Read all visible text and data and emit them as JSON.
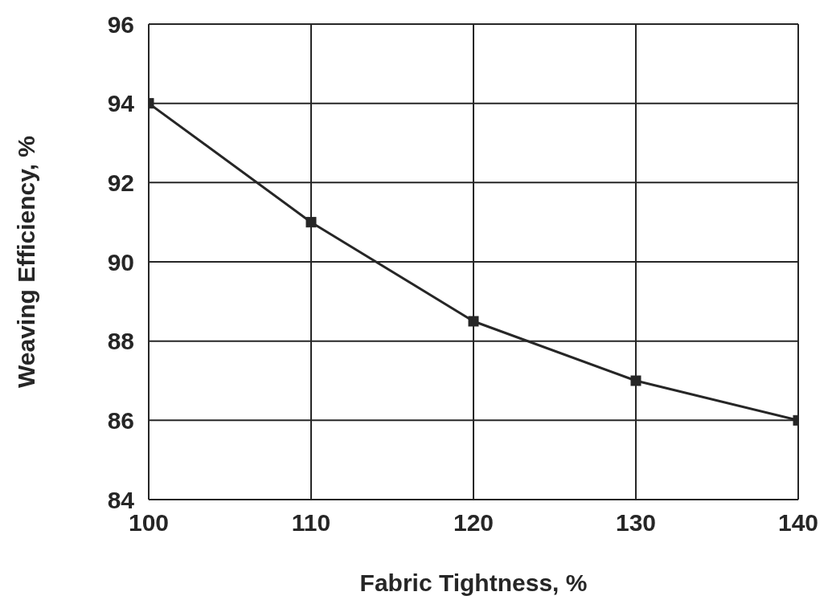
{
  "chart_data": {
    "type": "line",
    "xlabel": "Fabric Tightness, %",
    "ylabel": "Weaving Efficiency, %",
    "x": [
      100,
      110,
      120,
      130,
      140
    ],
    "series": [
      {
        "color": "#262626",
        "values": [
          94,
          91,
          88.5,
          87,
          86
        ]
      }
    ],
    "xlim": [
      100,
      140
    ],
    "xticks": [
      100,
      110,
      120,
      130,
      140
    ],
    "ylim": [
      84,
      96
    ],
    "yticks": [
      84,
      86,
      88,
      90,
      92,
      94,
      96
    ],
    "grid": true,
    "marker": "square",
    "line_style": "solid",
    "legend": false
  }
}
